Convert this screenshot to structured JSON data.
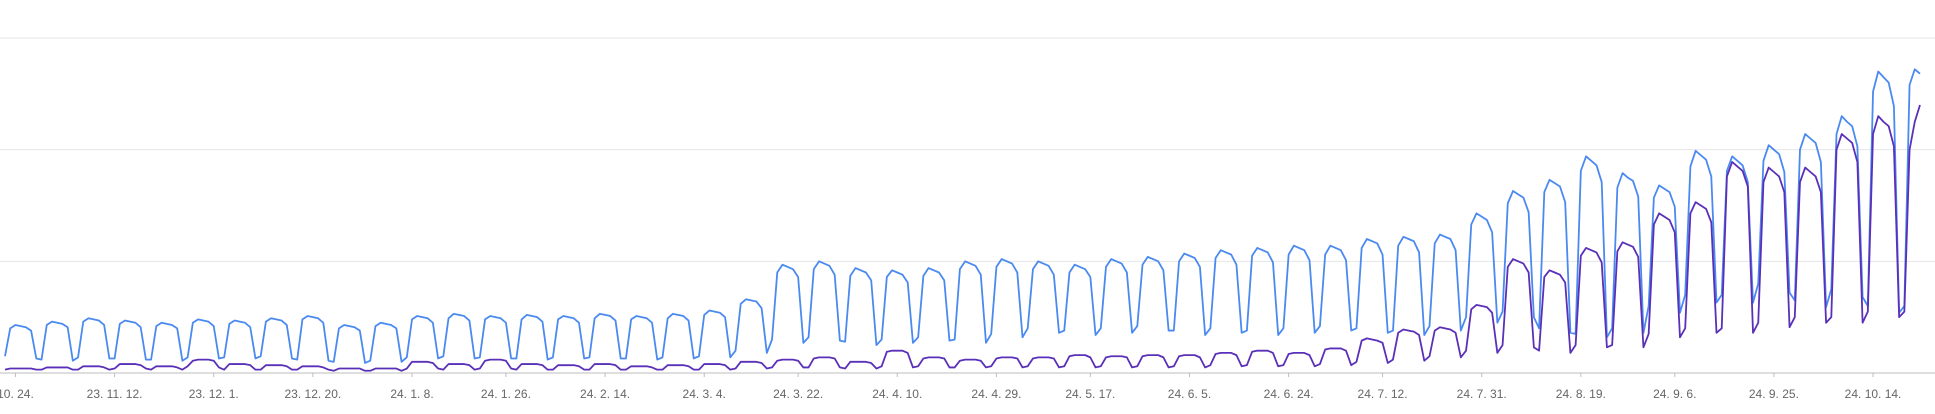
{
  "chart_data": {
    "type": "line",
    "xlim": [
      0,
      367
    ],
    "xticks": [
      {
        "value": 2,
        "label": "10. 24."
      },
      {
        "value": 21,
        "label": "23. 11. 12."
      },
      {
        "value": 40,
        "label": "23. 12. 1."
      },
      {
        "value": 59,
        "label": "23. 12. 20."
      },
      {
        "value": 78,
        "label": "24. 1. 8."
      },
      {
        "value": 96,
        "label": "24. 1. 26."
      },
      {
        "value": 115,
        "label": "24. 2. 14."
      },
      {
        "value": 134,
        "label": "24. 3. 4."
      },
      {
        "value": 152,
        "label": "24. 3. 22."
      },
      {
        "value": 171,
        "label": "24. 4. 10."
      },
      {
        "value": 190,
        "label": "24. 4. 29."
      },
      {
        "value": 208,
        "label": "24. 5. 17."
      },
      {
        "value": 227,
        "label": "24. 6. 5."
      },
      {
        "value": 246,
        "label": "24. 6. 24."
      },
      {
        "value": 264,
        "label": "24. 7. 12."
      },
      {
        "value": 283,
        "label": "24. 7. 31."
      },
      {
        "value": 302,
        "label": "24. 8. 19."
      },
      {
        "value": 320,
        "label": "24. 9. 6."
      },
      {
        "value": 339,
        "label": "24. 9. 25."
      },
      {
        "value": 358,
        "label": "24. 10. 14."
      }
    ],
    "ylim": [
      0,
      300
    ],
    "yticks": [
      0,
      100,
      200,
      300
    ],
    "grid": true,
    "series": [
      {
        "color": "#4a8af0",
        "values": [
          15,
          40,
          43,
          42,
          41,
          38,
          13,
          12,
          43,
          46,
          45,
          44,
          41,
          11,
          14,
          46,
          49,
          48,
          47,
          43,
          13,
          13,
          44,
          47,
          46,
          45,
          41,
          12,
          12,
          42,
          45,
          44,
          43,
          40,
          11,
          14,
          45,
          48,
          47,
          46,
          42,
          13,
          14,
          44,
          47,
          46,
          45,
          41,
          13,
          15,
          46,
          49,
          48,
          47,
          43,
          13,
          12,
          48,
          51,
          50,
          49,
          45,
          11,
          10,
          40,
          43,
          42,
          41,
          38,
          9,
          11,
          42,
          45,
          44,
          43,
          40,
          10,
          14,
          48,
          51,
          50,
          49,
          45,
          13,
          15,
          49,
          53,
          52,
          51,
          47,
          13,
          14,
          48,
          51,
          50,
          49,
          45,
          13,
          13,
          48,
          52,
          51,
          50,
          46,
          12,
          14,
          48,
          51,
          50,
          49,
          45,
          13,
          14,
          49,
          53,
          52,
          51,
          47,
          13,
          13,
          48,
          51,
          50,
          49,
          45,
          12,
          14,
          49,
          53,
          52,
          51,
          47,
          13,
          15,
          52,
          56,
          55,
          54,
          50,
          14,
          20,
          62,
          66,
          65,
          64,
          58,
          18,
          30,
          90,
          97,
          95,
          93,
          86,
          27,
          32,
          93,
          100,
          98,
          96,
          88,
          29,
          28,
          87,
          94,
          92,
          90,
          83,
          25,
          30,
          86,
          92,
          90,
          88,
          81,
          27,
          32,
          87,
          94,
          92,
          90,
          83,
          29,
          30,
          93,
          100,
          98,
          96,
          88,
          27,
          35,
          95,
          102,
          100,
          98,
          90,
          32,
          40,
          93,
          100,
          98,
          96,
          88,
          36,
          38,
          90,
          97,
          95,
          93,
          86,
          34,
          40,
          95,
          102,
          100,
          98,
          90,
          36,
          42,
          97,
          104,
          102,
          100,
          92,
          38,
          38,
          100,
          107,
          105,
          103,
          95,
          34,
          40,
          103,
          110,
          108,
          106,
          97,
          36,
          38,
          105,
          112,
          110,
          108,
          99,
          34,
          40,
          106,
          114,
          112,
          110,
          101,
          36,
          42,
          106,
          114,
          112,
          110,
          101,
          38,
          40,
          112,
          120,
          118,
          116,
          106,
          36,
          38,
          114,
          122,
          120,
          118,
          108,
          34,
          42,
          116,
          124,
          122,
          120,
          110,
          38,
          50,
          133,
          143,
          140,
          137,
          126,
          45,
          55,
          152,
          163,
          160,
          157,
          144,
          50,
          40,
          162,
          173,
          170,
          167,
          153,
          36,
          35,
          181,
          194,
          190,
          186,
          171,
          32,
          40,
          166,
          179,
          175,
          172,
          158,
          36,
          60,
          157,
          168,
          165,
          162,
          149,
          54,
          70,
          185,
          199,
          195,
          191,
          176,
          63,
          70,
          181,
          194,
          190,
          186,
          171,
          63,
          80,
          190,
          204,
          200,
          196,
          180,
          72,
          65,
          200,
          214,
          210,
          206,
          189,
          59,
          75,
          214,
          230,
          225,
          221,
          203,
          68,
          60,
          252,
          270,
          265,
          260,
          239,
          54,
          60,
          258,
          272,
          268
        ]
      },
      {
        "color": "#5a30b8",
        "values": [
          3,
          4,
          4,
          4,
          4,
          4,
          3,
          3,
          5,
          5,
          5,
          5,
          5,
          3,
          3,
          6,
          6,
          6,
          6,
          5,
          3,
          4,
          8,
          8,
          8,
          8,
          7,
          4,
          3,
          6,
          6,
          6,
          6,
          5,
          3,
          6,
          11,
          12,
          12,
          12,
          11,
          5,
          3,
          8,
          8,
          8,
          8,
          7,
          3,
          3,
          7,
          7,
          7,
          7,
          6,
          3,
          3,
          6,
          6,
          6,
          6,
          5,
          3,
          2,
          4,
          4,
          4,
          4,
          4,
          2,
          2,
          4,
          4,
          4,
          4,
          4,
          2,
          4,
          10,
          10,
          10,
          10,
          9,
          4,
          3,
          8,
          8,
          8,
          8,
          7,
          3,
          4,
          11,
          12,
          12,
          12,
          11,
          4,
          3,
          8,
          8,
          8,
          8,
          7,
          3,
          3,
          7,
          7,
          7,
          7,
          6,
          3,
          3,
          8,
          8,
          8,
          8,
          7,
          3,
          3,
          6,
          6,
          6,
          6,
          5,
          3,
          3,
          7,
          7,
          7,
          7,
          6,
          3,
          3,
          8,
          8,
          8,
          8,
          7,
          3,
          4,
          10,
          10,
          10,
          10,
          9,
          4,
          5,
          11,
          12,
          12,
          12,
          11,
          5,
          5,
          13,
          14,
          14,
          14,
          13,
          5,
          4,
          10,
          10,
          10,
          10,
          9,
          4,
          6,
          19,
          20,
          20,
          20,
          18,
          5,
          6,
          13,
          14,
          14,
          14,
          13,
          5,
          5,
          11,
          12,
          12,
          12,
          11,
          5,
          6,
          13,
          14,
          14,
          14,
          13,
          5,
          6,
          13,
          14,
          14,
          14,
          13,
          5,
          6,
          15,
          16,
          16,
          16,
          14,
          5,
          6,
          14,
          15,
          15,
          15,
          14,
          5,
          6,
          15,
          16,
          16,
          16,
          14,
          5,
          6,
          15,
          16,
          16,
          16,
          14,
          5,
          7,
          17,
          18,
          18,
          18,
          16,
          6,
          7,
          19,
          20,
          20,
          20,
          18,
          6,
          7,
          17,
          18,
          18,
          18,
          16,
          6,
          8,
          21,
          22,
          22,
          22,
          20,
          7,
          10,
          29,
          31,
          30,
          29,
          27,
          9,
          12,
          36,
          39,
          38,
          37,
          34,
          11,
          15,
          38,
          41,
          40,
          39,
          36,
          14,
          20,
          57,
          61,
          60,
          59,
          54,
          18,
          25,
          95,
          102,
          100,
          98,
          90,
          23,
          20,
          86,
          92,
          90,
          88,
          81,
          18,
          25,
          105,
          112,
          110,
          108,
          99,
          23,
          25,
          109,
          117,
          115,
          113,
          104,
          23,
          35,
          133,
          143,
          140,
          137,
          126,
          32,
          40,
          143,
          153,
          150,
          147,
          135,
          36,
          40,
          176,
          189,
          185,
          181,
          167,
          36,
          45,
          171,
          184,
          180,
          176,
          162,
          41,
          50,
          171,
          184,
          180,
          176,
          162,
          45,
          50,
          200,
          214,
          210,
          206,
          189,
          45,
          55,
          214,
          230,
          225,
          221,
          203,
          50,
          55,
          200,
          225,
          240
        ]
      }
    ]
  }
}
